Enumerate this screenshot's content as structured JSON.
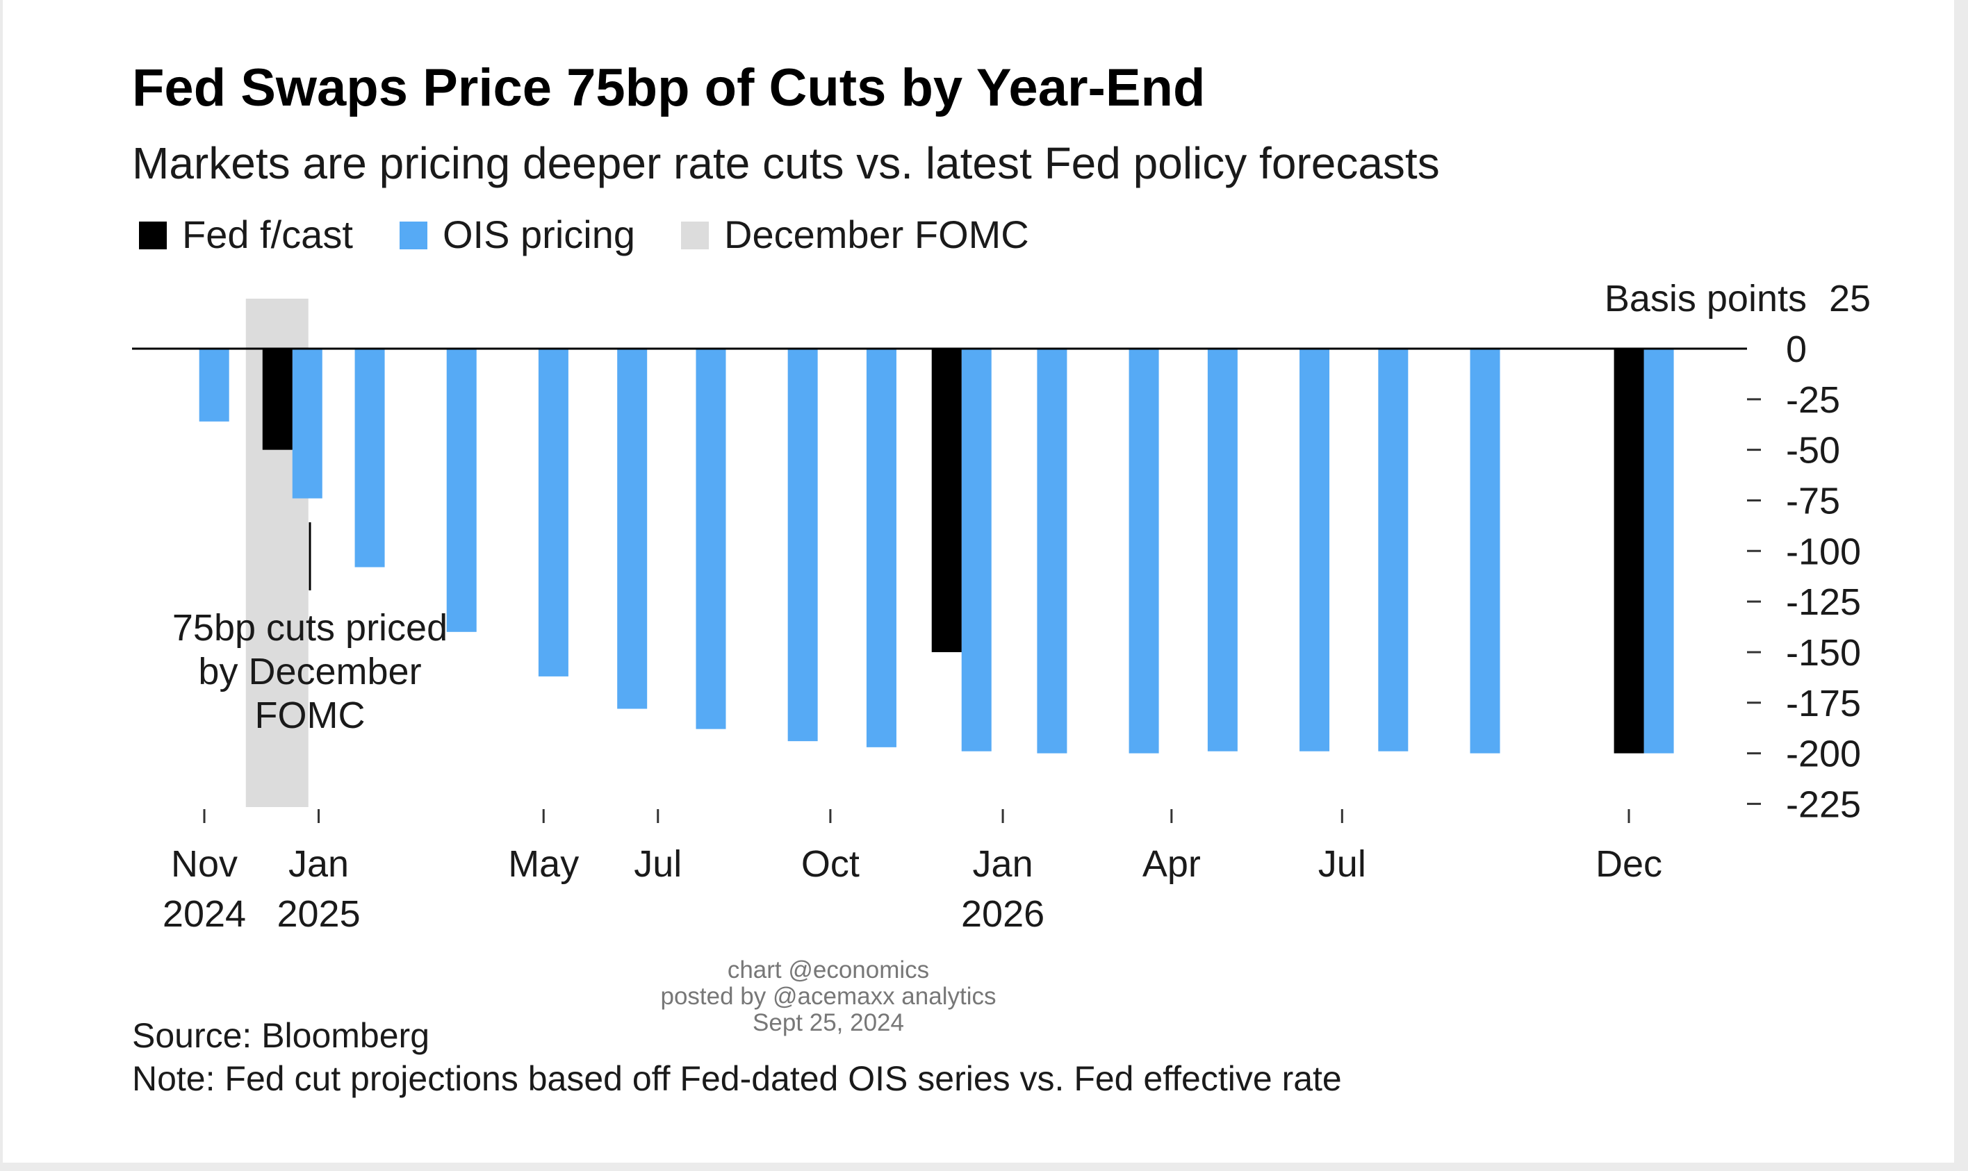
{
  "chart_data": {
    "type": "bar",
    "title": "Fed Swaps Price 75bp of Cuts by Year-End",
    "subtitle": "Markets are pricing deeper rate cuts vs. latest Fed policy forecasts",
    "legend": [
      {
        "label": "Fed f/cast",
        "color": "#000000"
      },
      {
        "label": "OIS pricing",
        "color": "#56aaf5"
      },
      {
        "label": "December FOMC",
        "color": "#dcdcdc"
      }
    ],
    "legend_position": "top-left",
    "y_axis": {
      "unit_label": "Basis points",
      "position": "right",
      "ylim": [
        -225,
        25
      ],
      "ticks": [
        25,
        0,
        -25,
        -50,
        -75,
        -100,
        -125,
        -150,
        -175,
        -200,
        -225
      ],
      "tick_labels": [
        "25",
        "0",
        "-25",
        "-50",
        "-75",
        "-100",
        "-125",
        "-150",
        "-175",
        "-200",
        "-225"
      ]
    },
    "x_axis": {
      "range": [
        "2024-10-01",
        "2026-12-31"
      ],
      "ticks": [
        {
          "date": "2024-11-01",
          "label": "Nov",
          "year": "2024"
        },
        {
          "date": "2025-01-01",
          "label": "Jan",
          "year": "2025"
        },
        {
          "date": "2025-05-01",
          "label": "May",
          "year": ""
        },
        {
          "date": "2025-07-01",
          "label": "Jul",
          "year": ""
        },
        {
          "date": "2025-10-01",
          "label": "Oct",
          "year": ""
        },
        {
          "date": "2026-01-01",
          "label": "Jan",
          "year": "2026"
        },
        {
          "date": "2026-04-01",
          "label": "Apr",
          "year": ""
        },
        {
          "date": "2026-07-01",
          "label": "Jul",
          "year": ""
        },
        {
          "date": "2026-12-01",
          "label": "Dec",
          "year": ""
        }
      ]
    },
    "series": [
      {
        "name": "OIS pricing",
        "color": "#56aaf5",
        "points": [
          {
            "date": "2024-11-07",
            "value": -36
          },
          {
            "date": "2024-12-18",
            "value": -74
          },
          {
            "date": "2025-01-29",
            "value": -108
          },
          {
            "date": "2025-03-19",
            "value": -140
          },
          {
            "date": "2025-05-07",
            "value": -162
          },
          {
            "date": "2025-06-18",
            "value": -178
          },
          {
            "date": "2025-07-30",
            "value": -188
          },
          {
            "date": "2025-09-17",
            "value": -194
          },
          {
            "date": "2025-10-29",
            "value": -197
          },
          {
            "date": "2025-12-10",
            "value": -199
          },
          {
            "date": "2026-01-28",
            "value": -200
          },
          {
            "date": "2026-03-18",
            "value": -200
          },
          {
            "date": "2026-04-29",
            "value": -199
          },
          {
            "date": "2026-06-17",
            "value": -199
          },
          {
            "date": "2026-07-29",
            "value": -199
          },
          {
            "date": "2026-09-16",
            "value": -200
          },
          {
            "date": "2026-12-09",
            "value": -200
          }
        ]
      },
      {
        "name": "Fed f/cast",
        "color": "#000000",
        "points": [
          {
            "date": "2024-12-18",
            "value": -50
          },
          {
            "date": "2025-12-10",
            "value": -150
          },
          {
            "date": "2026-12-09",
            "value": -200
          }
        ]
      }
    ],
    "highlight": {
      "label": "December FOMC",
      "date": "2024-12-18",
      "color": "#dcdcdc"
    },
    "annotation": {
      "lines": [
        "75bp cuts priced",
        "by December",
        "FOMC"
      ]
    }
  },
  "source": "Source: Bloomberg",
  "note": "Note: Fed cut projections based off Fed-dated OIS series vs. Fed effective rate",
  "watermark": [
    "chart @economics",
    "posted by @acemaxx analytics",
    "Sept 25, 2024"
  ]
}
